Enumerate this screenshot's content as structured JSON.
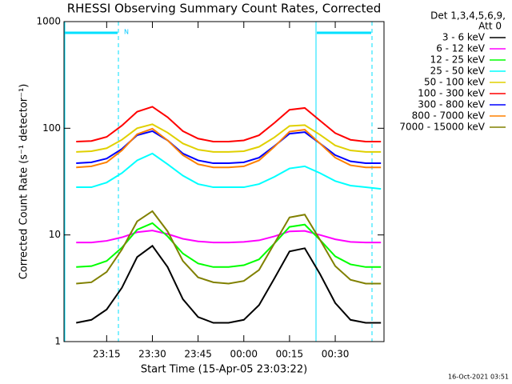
{
  "chart_data": {
    "type": "line",
    "title": "RHESSI Observing Summary Count Rates, Corrected",
    "x_label": "Start Time (15-Apr-05 23:03:22)",
    "y_label": "Corrected Count Rate (s⁻¹ detector⁻¹)",
    "legend_header": [
      "Det 1,3,4,5,6,9,",
      "Att 0"
    ],
    "annotations": [
      "N"
    ],
    "footer": "16-Oct-2021 03:51",
    "log_y": true,
    "x": [
      5,
      10,
      15,
      20,
      25,
      30,
      35,
      40,
      45,
      50,
      55,
      60,
      65,
      70,
      75,
      80,
      85,
      90,
      95,
      100,
      105
    ],
    "xlim": [
      1,
      106
    ],
    "xticks": [
      {
        "value": 15,
        "label": "23:15"
      },
      {
        "value": 30,
        "label": "23:30"
      },
      {
        "value": 45,
        "label": "23:45"
      },
      {
        "value": 60,
        "label": "00:00"
      },
      {
        "value": 75,
        "label": "00:15"
      },
      {
        "value": 90,
        "label": "00:30"
      }
    ],
    "ylim": [
      1,
      1000
    ],
    "yticks": [
      1,
      10,
      100,
      1000
    ],
    "series": [
      {
        "name": "3 - 6 keV",
        "color": "#000000",
        "values": [
          1.5,
          1.6,
          2.0,
          3.2,
          6.2,
          7.9,
          5.0,
          2.5,
          1.7,
          1.5,
          1.5,
          1.6,
          2.2,
          3.9,
          7.0,
          7.5,
          4.3,
          2.3,
          1.6,
          1.5,
          1.5
        ]
      },
      {
        "name": "6 - 12 keV",
        "color": "#ff00ff",
        "values": [
          8.5,
          8.5,
          8.8,
          9.5,
          10.6,
          11,
          10.2,
          9.2,
          8.7,
          8.5,
          8.5,
          8.6,
          8.9,
          9.7,
          10.8,
          10.9,
          10,
          9.1,
          8.6,
          8.5,
          8.5
        ]
      },
      {
        "name": "12 - 25 keV",
        "color": "#00ff00",
        "values": [
          5,
          5.1,
          5.7,
          7.6,
          11.2,
          12.9,
          9.7,
          6.7,
          5.4,
          5.0,
          5.0,
          5.2,
          5.9,
          8.3,
          11.9,
          12.5,
          9.0,
          6.3,
          5.3,
          5.0,
          5.0
        ]
      },
      {
        "name": "25 - 50 keV",
        "color": "#00ffff",
        "values": [
          28,
          28,
          31,
          38,
          50,
          58,
          46,
          36,
          30,
          28,
          28,
          28,
          30,
          35,
          42,
          44,
          38,
          32,
          29,
          28,
          27
        ]
      },
      {
        "name": "50 - 100 keV",
        "color": "#e0d000",
        "values": [
          60,
          61,
          65,
          78,
          100,
          109,
          91,
          72,
          63,
          60,
          60,
          61,
          67,
          82,
          105,
          107,
          87,
          69,
          62,
          60,
          60
        ]
      },
      {
        "name": "100 - 300 keV",
        "color": "#ff0000",
        "values": [
          75,
          76,
          83,
          106,
          143,
          159,
          127,
          94,
          80,
          75,
          75,
          77,
          86,
          112,
          149,
          155,
          118,
          90,
          78,
          75,
          75
        ]
      },
      {
        "name": "300 - 800 keV",
        "color": "#0000ff",
        "values": [
          47,
          48,
          52,
          64,
          86,
          94,
          77,
          58,
          50,
          47,
          47,
          48,
          53,
          68,
          89,
          92,
          72,
          56,
          49,
          47,
          47
        ]
      },
      {
        "name": "800 - 7000 keV",
        "color": "#ff8000",
        "values": [
          43,
          44,
          48,
          62,
          88,
          99,
          77,
          56,
          46,
          43,
          43,
          44,
          50,
          67,
          93,
          97,
          72,
          53,
          45,
          43,
          43
        ]
      },
      {
        "name": "7000 - 15000 keV",
        "color": "#808000",
        "values": [
          3.5,
          3.6,
          4.5,
          7.3,
          13.4,
          16.7,
          10.8,
          5.7,
          4.0,
          3.6,
          3.5,
          3.7,
          4.7,
          8.3,
          14.6,
          15.5,
          9.0,
          5.1,
          3.8,
          3.5,
          3.5
        ]
      }
    ]
  }
}
